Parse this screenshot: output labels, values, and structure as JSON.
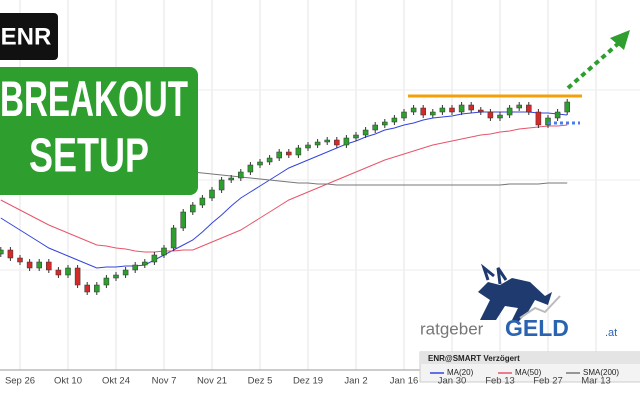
{
  "banner": {
    "ticker": "ENR",
    "headline_1": "BREAKOUT",
    "headline_2": "SETUP"
  },
  "logo": {
    "part_1": "ratgeber",
    "part_2": "GELD",
    "part_3": ".at"
  },
  "chart_data": {
    "type": "candlestick",
    "legend_title": "ENR@SMART Verzögert",
    "categories": [
      null,
      null,
      "Sep 26",
      null,
      null,
      null,
      null,
      "Okt 10",
      null,
      null,
      null,
      null,
      "Okt 24",
      null,
      null,
      null,
      null,
      "Nov 7",
      null,
      null,
      null,
      null,
      "Nov 21",
      null,
      null,
      null,
      null,
      "Dez 5",
      null,
      null,
      null,
      null,
      "Dez 19",
      null,
      null,
      null,
      null,
      "Jan 2",
      null,
      null,
      null,
      null,
      "Jan 16",
      null,
      null,
      null,
      null,
      "Jan 30",
      null,
      null,
      null,
      null,
      "Feb 13",
      null,
      null,
      null,
      null,
      "Feb 27",
      null,
      null,
      null,
      null,
      "Mar 13"
    ],
    "open": [
      14.6,
      15.0,
      14.2,
      13.8,
      13.2,
      13.8,
      13.0,
      12.5,
      13.2,
      11.5,
      10.8,
      11.5,
      12.2,
      12.5,
      13.0,
      13.5,
      13.8,
      14.5,
      15.2,
      17.2,
      18.8,
      19.5,
      20.2,
      21.0,
      22.0,
      22.2,
      22.8,
      23.5,
      23.8,
      24.2,
      24.8,
      24.5,
      25.2,
      25.5,
      25.8,
      26.0,
      25.5,
      26.2,
      26.5,
      27.0,
      27.5,
      27.8,
      28.2,
      28.8,
      29.2,
      28.5,
      28.8,
      29.2,
      28.8,
      29.5,
      29.0,
      28.8,
      28.2,
      28.5,
      29.2,
      29.5,
      28.8,
      27.5,
      28.2,
      28.8,
      null,
      null,
      null
    ],
    "high": [
      15.3,
      15.3,
      14.5,
      14.1,
      14.1,
      14.1,
      13.3,
      13.5,
      13.5,
      11.8,
      11.8,
      12.5,
      12.8,
      13.3,
      13.8,
      14.1,
      14.8,
      15.5,
      17.5,
      19.1,
      19.8,
      20.5,
      21.3,
      22.3,
      22.5,
      23.1,
      23.8,
      24.1,
      24.5,
      25.1,
      25.1,
      25.5,
      25.8,
      26.1,
      26.3,
      26.3,
      26.5,
      26.8,
      27.3,
      27.8,
      28.1,
      28.5,
      29.1,
      29.5,
      29.5,
      29.1,
      29.5,
      29.5,
      29.8,
      29.8,
      29.3,
      29.1,
      28.8,
      29.5,
      29.8,
      29.8,
      29.1,
      28.5,
      29.1,
      30.1,
      null,
      null,
      null
    ],
    "low": [
      14.3,
      13.9,
      13.5,
      12.9,
      12.9,
      12.7,
      12.2,
      12.2,
      11.2,
      10.5,
      10.5,
      11.2,
      11.9,
      12.2,
      12.7,
      13.2,
      13.5,
      14.2,
      14.9,
      16.9,
      18.5,
      19.2,
      19.9,
      20.7,
      21.7,
      21.9,
      22.5,
      23.2,
      23.5,
      23.9,
      24.2,
      24.2,
      24.9,
      25.2,
      25.5,
      25.2,
      25.2,
      25.9,
      26.2,
      26.7,
      27.2,
      27.5,
      27.9,
      28.5,
      28.2,
      28.2,
      28.5,
      28.5,
      28.5,
      28.7,
      28.5,
      27.9,
      27.9,
      28.2,
      28.9,
      28.5,
      27.2,
      27.2,
      27.9,
      28.5,
      null,
      null,
      null
    ],
    "close": [
      15.0,
      14.2,
      13.8,
      13.2,
      13.8,
      13.0,
      12.5,
      13.2,
      11.5,
      10.8,
      11.5,
      12.2,
      12.5,
      13.0,
      13.5,
      13.8,
      14.5,
      15.2,
      17.2,
      18.8,
      19.5,
      20.2,
      21.0,
      22.0,
      22.2,
      22.8,
      23.5,
      23.8,
      24.2,
      24.8,
      24.5,
      25.2,
      25.5,
      25.8,
      26.0,
      25.5,
      26.2,
      26.5,
      27.0,
      27.5,
      27.8,
      28.2,
      28.8,
      29.2,
      28.5,
      28.8,
      29.2,
      28.8,
      29.5,
      29.0,
      28.8,
      28.2,
      28.5,
      29.2,
      29.5,
      28.8,
      27.5,
      28.2,
      28.8,
      29.8,
      null,
      null,
      null
    ],
    "up_color": "#2e9e2e",
    "down_color": "#d42a2a",
    "series": [
      {
        "name": "MA(20)",
        "color": "#3344dd",
        "values": [
          18.2,
          17.6,
          17.0,
          16.4,
          15.8,
          15.2,
          14.8,
          14.4,
          14.0,
          13.6,
          13.2,
          13.3,
          13.3,
          13.4,
          13.4,
          13.5,
          14.0,
          14.5,
          15.0,
          15.5,
          16.0,
          16.8,
          17.7,
          18.5,
          19.4,
          20.2,
          20.8,
          21.4,
          22.0,
          22.6,
          23.2,
          23.6,
          24.0,
          24.4,
          24.8,
          25.2,
          25.6,
          25.9,
          26.3,
          26.6,
          27.0,
          27.2,
          27.5,
          27.7,
          28.0,
          28.2,
          28.3,
          28.4,
          28.6,
          28.7,
          28.8,
          28.8,
          28.8,
          28.8,
          28.8,
          28.8,
          28.7,
          28.7,
          28.6,
          28.5,
          null,
          null,
          null
        ]
      },
      {
        "name": "MA(50)",
        "color": "#e8546a",
        "values": [
          20.0,
          19.5,
          19.0,
          18.5,
          18.0,
          17.5,
          17.1,
          16.7,
          16.3,
          15.9,
          15.5,
          15.4,
          15.2,
          15.1,
          14.9,
          14.8,
          14.8,
          14.9,
          14.9,
          15.0,
          15.0,
          15.4,
          15.8,
          16.2,
          16.6,
          17.0,
          17.6,
          18.2,
          18.8,
          19.4,
          20.0,
          20.4,
          20.8,
          21.2,
          21.6,
          22.0,
          22.4,
          22.8,
          23.2,
          23.6,
          24.0,
          24.3,
          24.6,
          24.9,
          25.2,
          25.5,
          25.7,
          25.9,
          26.1,
          26.3,
          26.5,
          26.6,
          26.8,
          26.9,
          27.1,
          27.2,
          27.3,
          27.4,
          27.4,
          27.5,
          null,
          null,
          null
        ]
      },
      {
        "name": "SMA(200)",
        "color": "#777777",
        "values": [
          23.8,
          23.8,
          23.7,
          23.7,
          23.6,
          23.6,
          23.5,
          23.5,
          23.4,
          23.4,
          23.3,
          23.3,
          23.2,
          23.2,
          23.1,
          23.1,
          23.0,
          23.0,
          22.9,
          22.9,
          22.8,
          22.7,
          22.6,
          22.5,
          22.4,
          22.3,
          22.2,
          22.1,
          22.0,
          21.9,
          21.8,
          21.7,
          21.7,
          21.6,
          21.6,
          21.5,
          21.5,
          21.5,
          21.5,
          21.5,
          21.5,
          21.5,
          21.5,
          21.5,
          21.5,
          21.5,
          21.5,
          21.5,
          21.5,
          21.5,
          21.5,
          21.5,
          21.5,
          21.6,
          21.6,
          21.6,
          21.6,
          21.7,
          21.7,
          21.7,
          null,
          null,
          null
        ]
      }
    ],
    "resistance": {
      "value": 30.4,
      "color": "#f5a00a"
    },
    "support": {
      "value": 27.7,
      "color": "#4a7de8"
    },
    "ylim": [
      3,
      40
    ],
    "grid": true
  }
}
